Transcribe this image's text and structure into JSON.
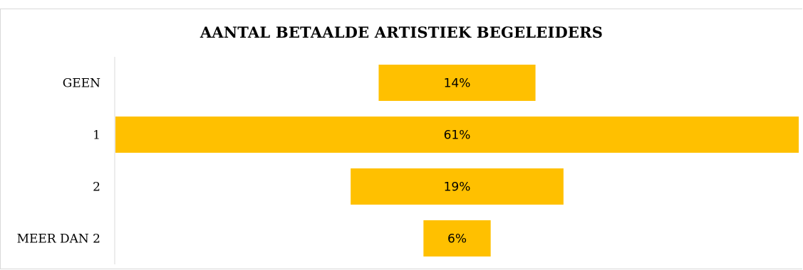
{
  "chart_data": {
    "type": "bar",
    "orientation": "horizontal-funnel",
    "title": "AANTAL BETAALDE ARTISTIEK BEGELEIDERS",
    "categories": [
      "GEEN",
      "1",
      "2",
      "MEER DAN 2"
    ],
    "values": [
      14,
      61,
      19,
      6
    ],
    "value_labels": [
      "14%",
      "61%",
      "19%",
      "6%"
    ],
    "unit": "%",
    "xlim": [
      0,
      61
    ],
    "grid": false,
    "legend": "none",
    "bar_color": "#FFC000",
    "axis_color": "#d9d9d9"
  }
}
